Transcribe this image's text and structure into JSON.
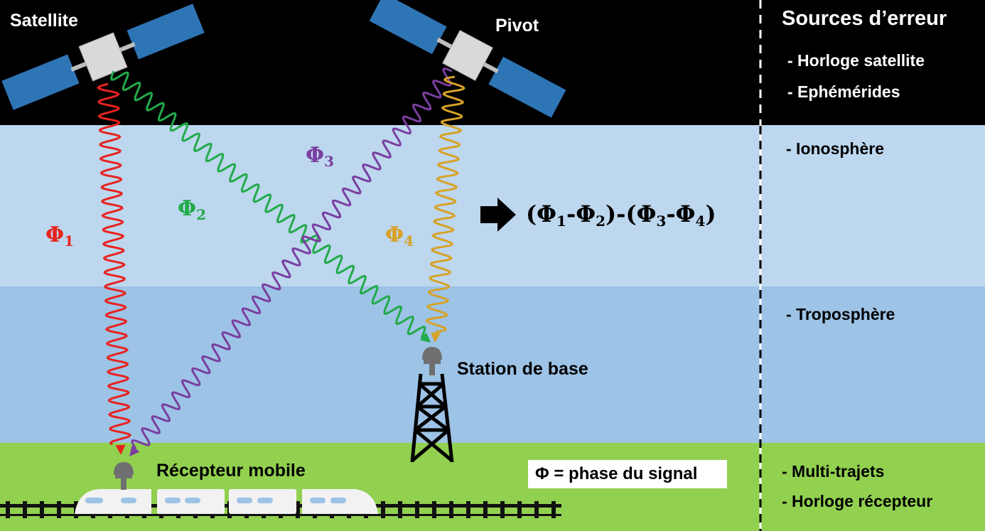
{
  "labels": {
    "satellite": "Satellite",
    "pivot": "Pivot",
    "base_station": "Station de base",
    "mobile_receiver": "Récepteur mobile"
  },
  "signals": {
    "phi1": {
      "symbol": "Φ",
      "sub": "1",
      "color": "#e8231f"
    },
    "phi2": {
      "symbol": "Φ",
      "sub": "2",
      "color": "#22aa4a"
    },
    "phi3": {
      "symbol": "Φ",
      "sub": "3",
      "color": "#7a3ea0"
    },
    "phi4": {
      "symbol": "Φ",
      "sub": "4",
      "color": "#d7a228"
    }
  },
  "formula": {
    "open1": "(",
    "a": "Φ",
    "a_sub": "1",
    "dash1": "-",
    "b": "Φ",
    "b_sub": "2",
    "mid": ")-(",
    "c": "Φ",
    "c_sub": "3",
    "dash2": "-",
    "d": "Φ",
    "d_sub": "4",
    "close": ")"
  },
  "legend": {
    "text": "Φ = phase du signal"
  },
  "errors": {
    "title": "Sources d’erreur",
    "satellite_items": [
      "- Horloge satellite",
      "- Ephémérides"
    ],
    "ionosphere": "- Ionosphère",
    "troposphere": "- Troposphère",
    "ground_items": [
      "- Multi-trajets",
      "- Horloge récepteur"
    ]
  },
  "colors": {
    "space": "#000000",
    "ionosphere": "#bdd7ee",
    "troposphere": "#9dc3e6",
    "ground": "#92d050",
    "solar_panel": "#2e75b6",
    "satellite_body": "#d9d9d9",
    "antenna": "#6f6f6f"
  }
}
